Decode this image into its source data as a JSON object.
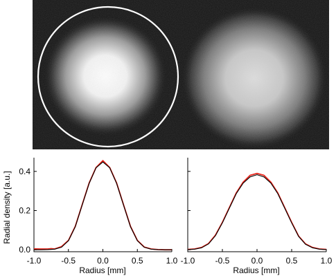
{
  "image_panel": {
    "background_color": "#141414",
    "overlay_circle_color": "#ffffff"
  },
  "chart_data": [
    {
      "type": "line",
      "title": "",
      "xlabel": "Radius [mm]",
      "ylabel": "Radial density [a.u.]",
      "xlim": [
        -1.0,
        1.0
      ],
      "ylim": [
        -0.01,
        0.47
      ],
      "xticks": [
        "-1.0",
        "-0.5",
        "0.0",
        "0.5",
        "1.0"
      ],
      "yticks": [
        "0.0",
        "0.2",
        "0.4"
      ],
      "grid": false,
      "series": [
        {
          "color": "#e8261c",
          "x": [
            -1.0,
            -0.9,
            -0.8,
            -0.75,
            -0.7,
            -0.6,
            -0.5,
            -0.4,
            -0.3,
            -0.2,
            -0.1,
            0.0,
            0.1,
            0.2,
            0.3,
            0.4,
            0.5,
            0.6,
            0.7,
            0.8,
            0.9,
            1.0
          ],
          "y": [
            0.005,
            0.004,
            0.004,
            0.006,
            0.004,
            0.016,
            0.048,
            0.12,
            0.23,
            0.34,
            0.42,
            0.455,
            0.42,
            0.34,
            0.23,
            0.12,
            0.048,
            0.014,
            0.004,
            0.001,
            0.0,
            0.0
          ]
        },
        {
          "color": "#000000",
          "x": [
            -1.0,
            -0.9,
            -0.8,
            -0.7,
            -0.6,
            -0.5,
            -0.4,
            -0.3,
            -0.2,
            -0.1,
            0.0,
            0.1,
            0.2,
            0.3,
            0.4,
            0.5,
            0.6,
            0.7,
            0.8,
            0.9,
            1.0
          ],
          "y": [
            0.0,
            0.0,
            0.001,
            0.003,
            0.013,
            0.046,
            0.118,
            0.228,
            0.338,
            0.418,
            0.448,
            0.418,
            0.338,
            0.228,
            0.118,
            0.046,
            0.013,
            0.003,
            0.001,
            0.0,
            0.0
          ]
        }
      ]
    },
    {
      "type": "line",
      "title": "",
      "xlabel": "Radius [mm]",
      "ylabel": "",
      "xlim": [
        -1.0,
        1.0
      ],
      "ylim": [
        -0.01,
        0.47
      ],
      "xticks": [
        "-1.0",
        "-0.5",
        "0.0",
        "0.5",
        "1.0"
      ],
      "yticks": [
        "",
        "",
        ""
      ],
      "grid": false,
      "series": [
        {
          "color": "#e8261c",
          "x": [
            -1.0,
            -0.9,
            -0.8,
            -0.7,
            -0.6,
            -0.5,
            -0.4,
            -0.3,
            -0.2,
            -0.1,
            0.0,
            0.1,
            0.2,
            0.3,
            0.4,
            0.5,
            0.6,
            0.7,
            0.8,
            0.9,
            1.0
          ],
          "y": [
            0.002,
            0.004,
            0.012,
            0.032,
            0.075,
            0.14,
            0.215,
            0.29,
            0.345,
            0.38,
            0.39,
            0.38,
            0.345,
            0.29,
            0.215,
            0.14,
            0.07,
            0.03,
            0.012,
            0.004,
            0.002
          ]
        },
        {
          "color": "#000000",
          "x": [
            -1.0,
            -0.9,
            -0.8,
            -0.7,
            -0.6,
            -0.5,
            -0.4,
            -0.3,
            -0.2,
            -0.1,
            0.0,
            0.1,
            0.2,
            0.3,
            0.4,
            0.5,
            0.6,
            0.7,
            0.8,
            0.9,
            1.0
          ],
          "y": [
            0.001,
            0.003,
            0.01,
            0.03,
            0.072,
            0.137,
            0.212,
            0.286,
            0.34,
            0.372,
            0.383,
            0.372,
            0.34,
            0.286,
            0.212,
            0.137,
            0.068,
            0.028,
            0.01,
            0.003,
            0.001
          ]
        }
      ]
    }
  ]
}
